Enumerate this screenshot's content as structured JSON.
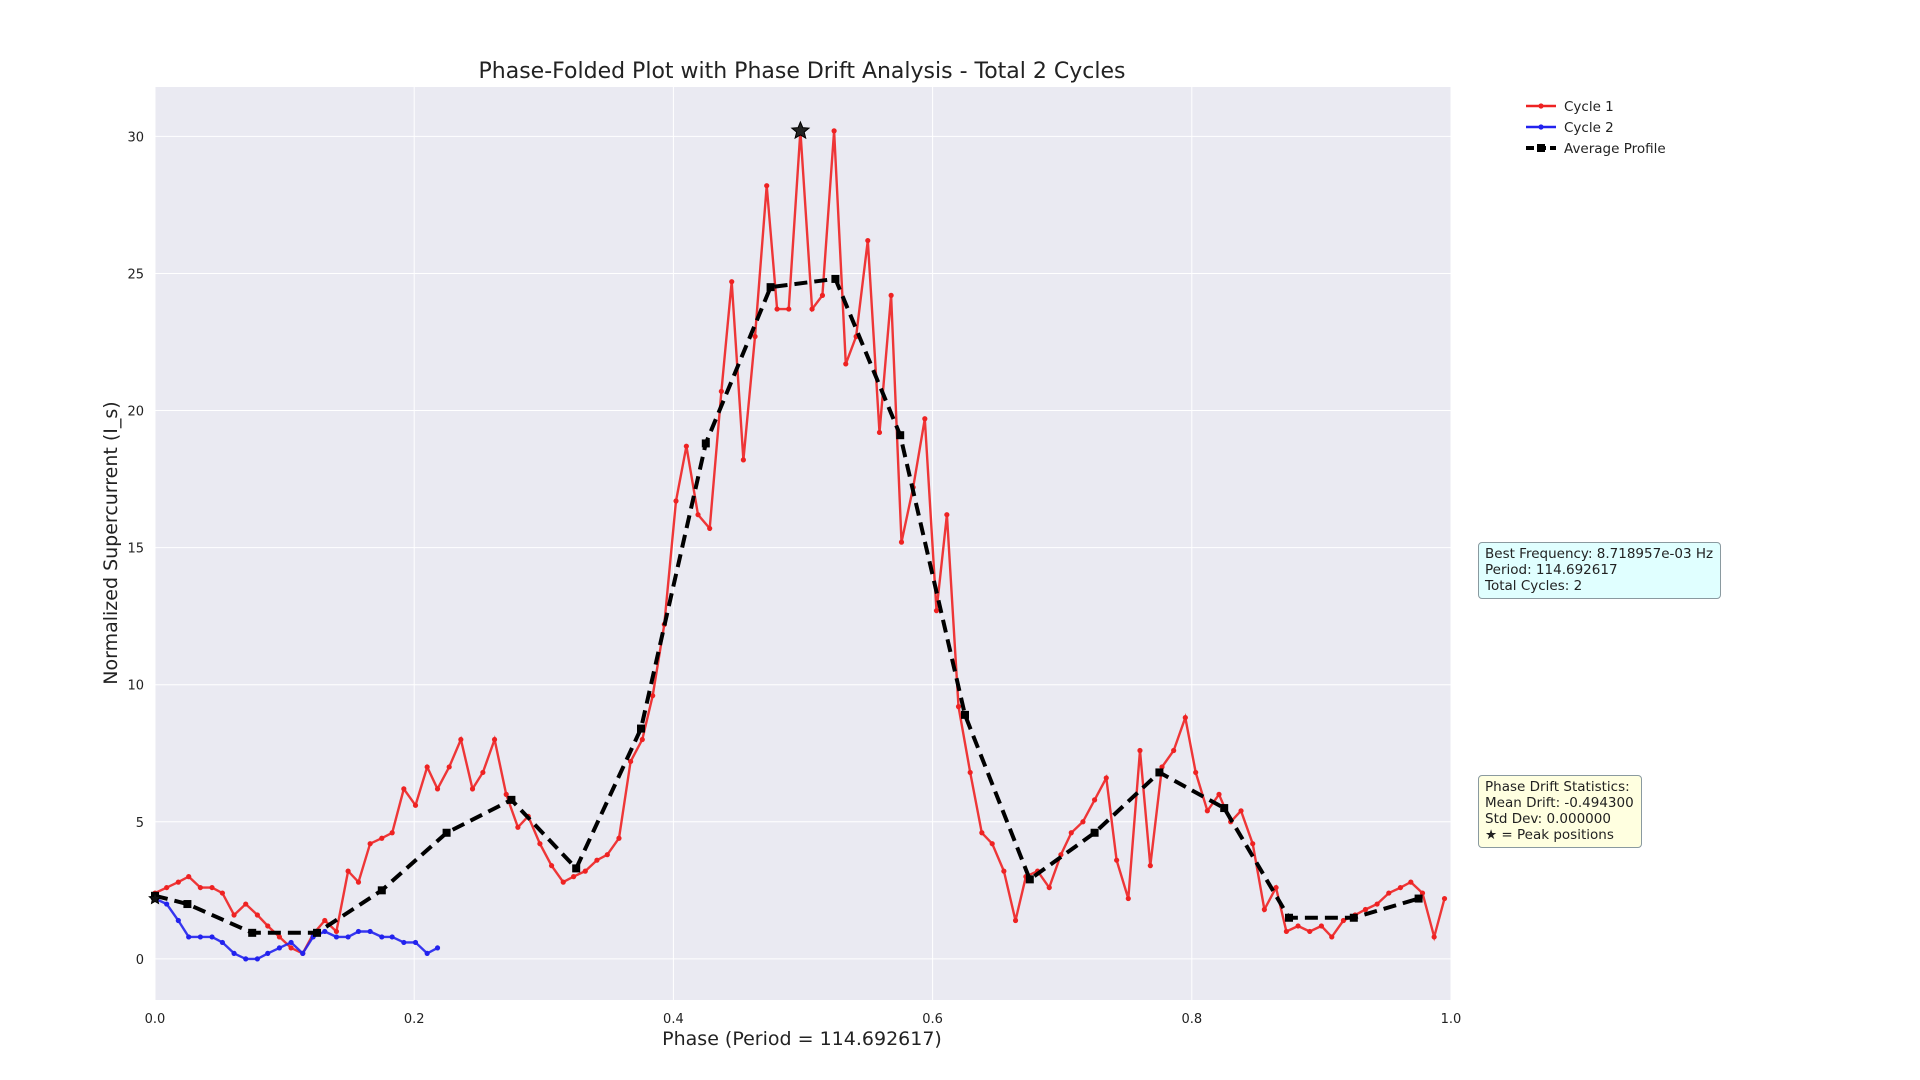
{
  "chart_data": {
    "type": "line",
    "title": "Phase-Folded Plot with Phase Drift Analysis - Total 2 Cycles",
    "xlabel": "Phase (Period = 114.692617)",
    "ylabel": "Normalized Supercurrent (I_s)",
    "xlim": [
      0.0,
      1.0
    ],
    "ylim": [
      -1.5,
      31.8
    ],
    "xticks": [
      "0.0",
      "0.2",
      "0.4",
      "0.6",
      "0.8",
      "1.0"
    ],
    "yticks": [
      "0",
      "5",
      "10",
      "15",
      "20",
      "25",
      "30"
    ],
    "grid": true,
    "legend_position": "upper-right-outside",
    "series": [
      {
        "name": "Cycle 1",
        "color": "#ee2222",
        "style": "solid-dot-markers",
        "x": [
          0.0,
          0.009,
          0.018,
          0.026,
          0.035,
          0.044,
          0.052,
          0.061,
          0.07,
          0.079,
          0.087,
          0.096,
          0.105,
          0.114,
          0.122,
          0.131,
          0.14,
          0.149,
          0.157,
          0.166,
          0.175,
          0.183,
          0.192,
          0.201,
          0.21,
          0.218,
          0.227,
          0.236,
          0.245,
          0.253,
          0.262,
          0.271,
          0.28,
          0.288,
          0.297,
          0.306,
          0.315,
          0.323,
          0.332,
          0.341,
          0.349,
          0.358,
          0.367,
          0.376,
          0.384,
          0.393,
          0.402,
          0.41,
          0.419,
          0.428,
          0.437,
          0.445,
          0.454,
          0.463,
          0.472,
          0.48,
          0.489,
          0.498,
          0.507,
          0.515,
          0.524,
          0.533,
          0.541,
          0.55,
          0.559,
          0.568,
          0.576,
          0.585,
          0.594,
          0.603,
          0.611,
          0.62,
          0.629,
          0.638,
          0.646,
          0.655,
          0.664,
          0.672,
          0.681,
          0.69,
          0.699,
          0.707,
          0.716,
          0.725,
          0.734,
          0.742,
          0.751,
          0.76,
          0.768,
          0.777,
          0.786,
          0.795,
          0.803,
          0.812,
          0.821,
          0.83,
          0.838,
          0.847,
          0.856,
          0.865,
          0.873,
          0.882,
          0.891,
          0.9,
          0.908,
          0.917,
          0.926,
          0.934,
          0.943,
          0.952,
          0.961,
          0.969,
          0.978,
          0.987,
          0.995
        ],
        "y": [
          2.4,
          2.6,
          2.8,
          3.0,
          2.6,
          2.6,
          2.4,
          1.6,
          2.0,
          1.6,
          1.2,
          0.8,
          0.4,
          0.2,
          0.9,
          1.4,
          1.0,
          3.2,
          2.8,
          4.2,
          4.4,
          4.6,
          6.2,
          5.6,
          7.0,
          6.2,
          7.0,
          8.0,
          6.2,
          6.8,
          8.0,
          6.0,
          4.8,
          5.2,
          4.2,
          3.4,
          2.8,
          3.0,
          3.2,
          3.6,
          3.8,
          4.4,
          7.2,
          8.0,
          9.6,
          12.2,
          16.7,
          18.7,
          16.2,
          15.7,
          20.7,
          24.7,
          18.2,
          22.7,
          28.2,
          23.7,
          23.7,
          30.2,
          23.7,
          24.2,
          30.2,
          21.7,
          22.7,
          26.2,
          19.2,
          24.2,
          15.2,
          17.2,
          19.7,
          12.7,
          16.2,
          9.2,
          6.8,
          4.6,
          4.2,
          3.2,
          1.4,
          3.0,
          3.2,
          2.6,
          3.8,
          4.6,
          5.0,
          5.8,
          6.6,
          3.6,
          2.2,
          7.6,
          3.4,
          7.0,
          7.6,
          8.8,
          6.8,
          5.4,
          6.0,
          5.0,
          5.4,
          4.2,
          1.8,
          2.6,
          1.0,
          1.2,
          1.0,
          1.2,
          0.8,
          1.4,
          1.6,
          1.8,
          2.0,
          2.4,
          2.6,
          2.8,
          2.4,
          0.8,
          2.2
        ]
      },
      {
        "name": "Cycle 2",
        "color": "#2222ee",
        "style": "solid-dot-markers",
        "x": [
          0.0,
          0.009,
          0.018,
          0.026,
          0.035,
          0.044,
          0.052,
          0.061,
          0.07,
          0.079,
          0.087,
          0.096,
          0.105,
          0.114,
          0.122,
          0.131,
          0.14,
          0.149,
          0.157,
          0.166,
          0.175,
          0.183,
          0.192,
          0.201,
          0.21,
          0.218
        ],
        "y": [
          2.2,
          2.0,
          1.4,
          0.8,
          0.8,
          0.8,
          0.6,
          0.2,
          0.0,
          0.0,
          0.2,
          0.4,
          0.6,
          0.2,
          0.8,
          1.0,
          0.8,
          0.8,
          1.0,
          1.0,
          0.8,
          0.8,
          0.6,
          0.6,
          0.2,
          0.4
        ]
      },
      {
        "name": "Average Profile",
        "color": "#000000",
        "style": "dashed-square-markers",
        "x": [
          0.0,
          0.025,
          0.075,
          0.125,
          0.175,
          0.225,
          0.275,
          0.325,
          0.375,
          0.425,
          0.475,
          0.525,
          0.575,
          0.625,
          0.675,
          0.725,
          0.775,
          0.825,
          0.875,
          0.925,
          0.975
        ],
        "y": [
          2.3,
          2.0,
          0.95,
          0.95,
          2.5,
          4.6,
          5.8,
          3.3,
          8.4,
          18.8,
          24.5,
          24.8,
          19.1,
          8.9,
          2.9,
          4.6,
          6.8,
          5.5,
          1.5,
          1.5,
          2.2
        ]
      }
    ],
    "peak_markers": {
      "symbol": "star",
      "points": [
        {
          "x": 0.498,
          "y": 30.2
        },
        {
          "x": 0.0,
          "y": 2.2
        }
      ]
    }
  },
  "info_box_frequency": {
    "line1": "Best Frequency: 8.718957e-03 Hz",
    "line2": "Period: 114.692617",
    "line3": "Total Cycles: 2"
  },
  "info_box_drift": {
    "line1": "Phase Drift Statistics:",
    "line2": "Mean Drift: -0.494300",
    "line3": "Std Dev: 0.000000",
    "line4": "★ = Peak positions"
  },
  "colors": {
    "plot_background": "#eaeaf2",
    "frequency_box": "#e0ffff",
    "drift_box": "#ffffe0"
  }
}
